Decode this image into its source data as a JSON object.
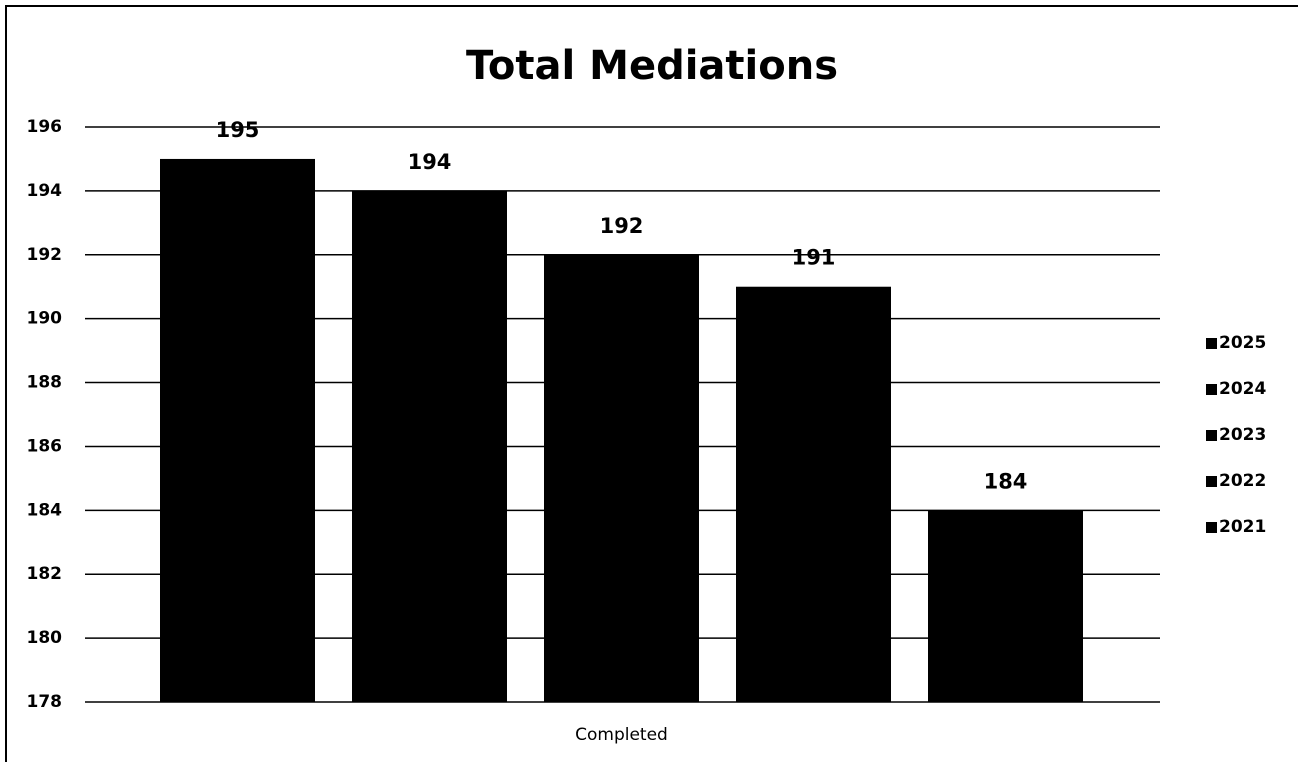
{
  "chart_data": {
    "type": "bar",
    "title": "Total Mediations",
    "categories": [
      "Completed"
    ],
    "series": [
      {
        "name": "2025",
        "color": "#000000",
        "values": [
          195
        ]
      },
      {
        "name": "2024",
        "color": "#000000",
        "values": [
          194
        ]
      },
      {
        "name": "2023",
        "color": "#000000",
        "values": [
          192
        ]
      },
      {
        "name": "2022",
        "color": "#000000",
        "values": [
          191
        ]
      },
      {
        "name": "2021",
        "color": "#000000",
        "values": [
          184
        ]
      }
    ],
    "ylim": [
      178,
      196
    ],
    "yticks": [
      178,
      180,
      182,
      184,
      186,
      188,
      190,
      192,
      194,
      196
    ],
    "grid": true,
    "legend": "right"
  }
}
